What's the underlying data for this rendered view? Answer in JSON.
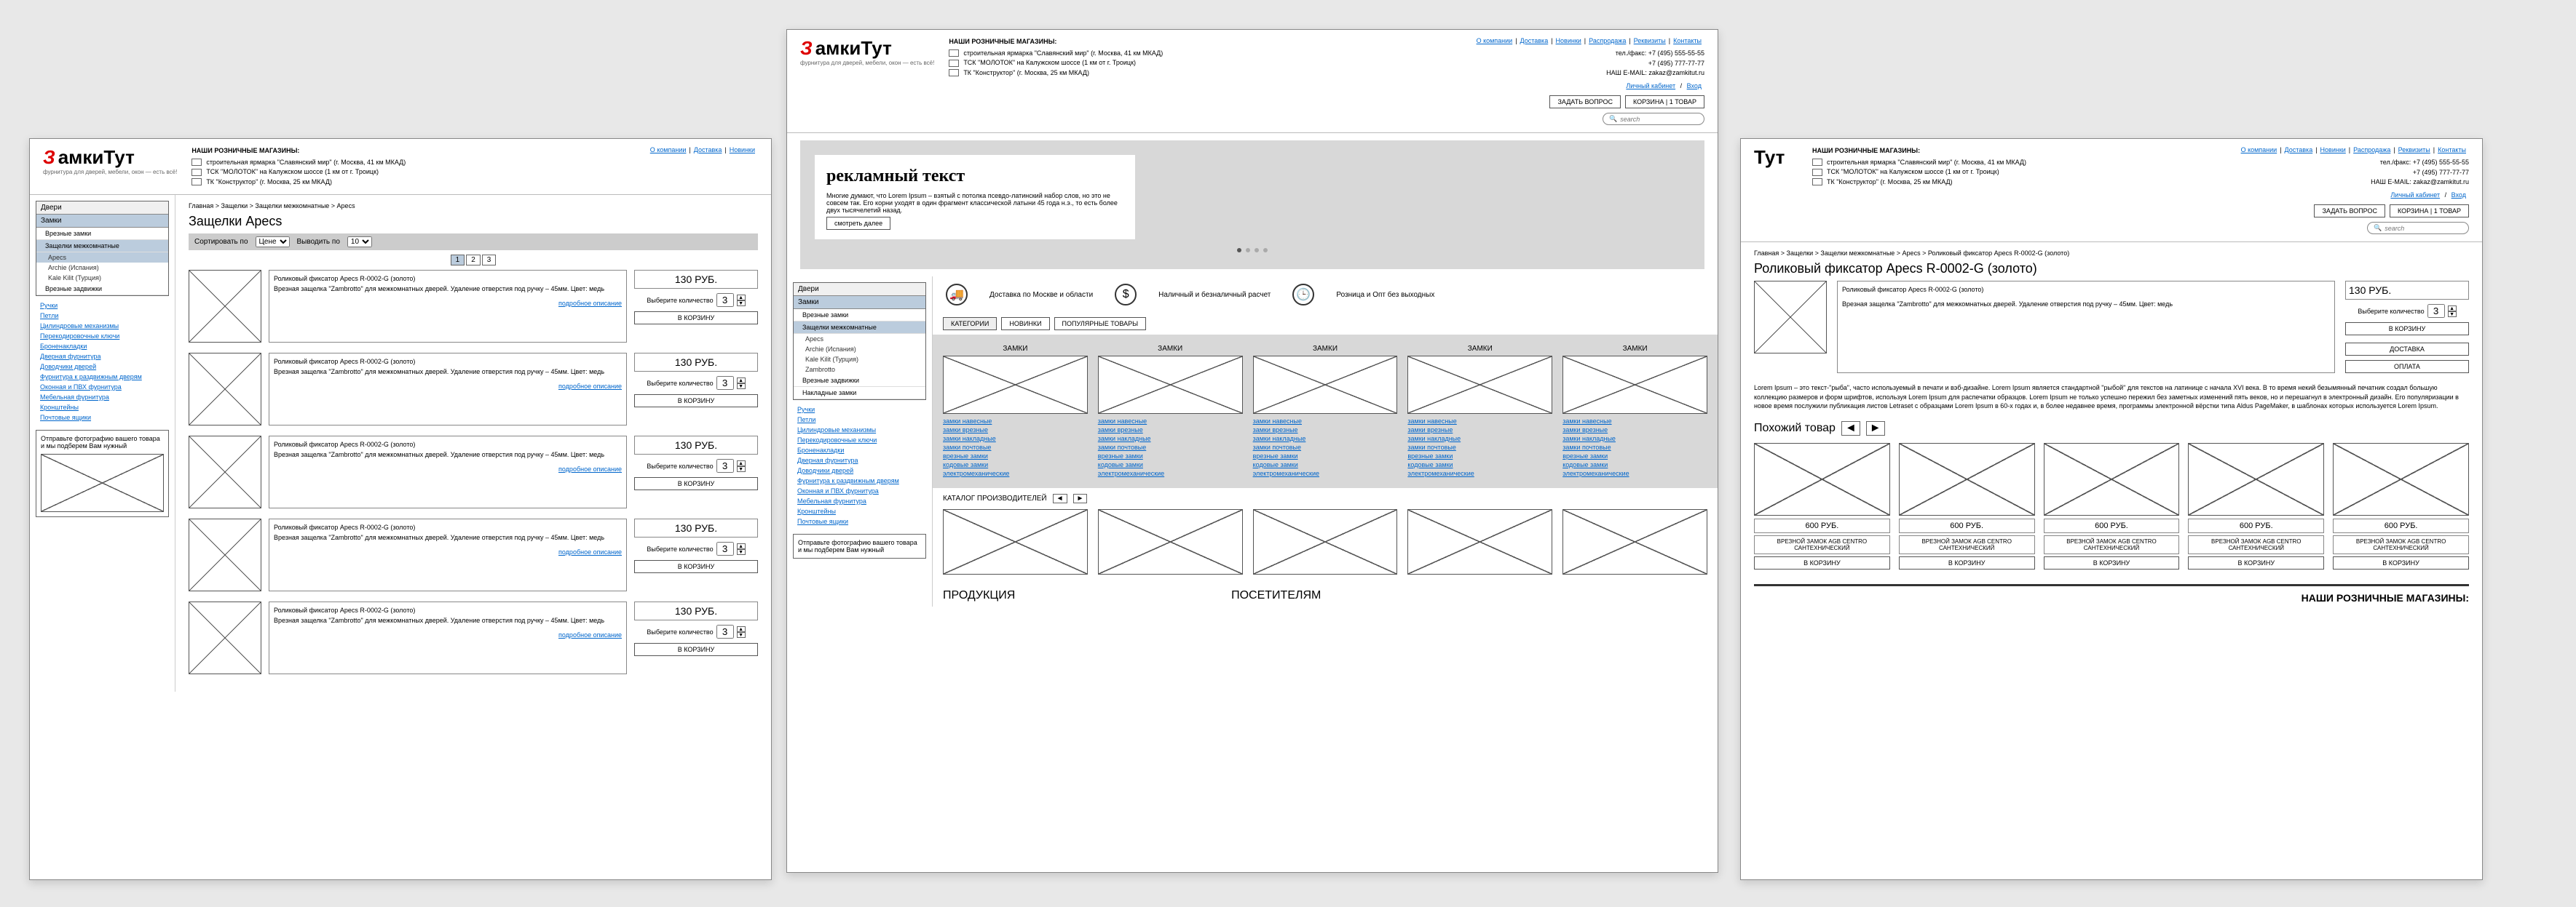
{
  "logo": {
    "part1": "З",
    "part2": "амкиТут",
    "sub": "фурнитура для дверей, мебели, окон — есть всё!"
  },
  "stores": {
    "title": "НАШИ РОЗНИЧНЫЕ МАГАЗИНЫ:",
    "list": [
      "строительная ярмарка \"Славянский мир\" (г. Москва, 41 км МКАД)",
      "ТСК \"МОЛОТОК\" на Калужском шоссе (1 км от г. Троицк)",
      "ТК \"Конструктор\" (г. Москва, 25 км МКАД)"
    ]
  },
  "topnav": [
    "О компании",
    "Доставка",
    "Новинки",
    "Распродажа",
    "Реквизиты",
    "Контакты"
  ],
  "contact": {
    "phone1": "тел./факс: +7 (495) 555-55-55",
    "phone2": "+7 (495) 777-77-77",
    "email": "НАШ E-MAIL: zakaz@zamkitut.ru",
    "cabinet": "Личный кабинет",
    "login": "Вход"
  },
  "buttons": {
    "ask": "ЗАДАТЬ ВОПРОС",
    "cart": "КОРЗИНА",
    "cart_qty": "1 ТОВАР"
  },
  "search_placeholder": "search",
  "sidebar": {
    "groups": [
      "Двери",
      "Замки"
    ],
    "sub": [
      "Врезные замки",
      "Защелки межкомнатные",
      "Накладные замки",
      "Врезные задвижки"
    ],
    "brands": [
      "Apecs",
      "Archie (Испания)",
      "Kale Kilit (Турция)",
      "Zambrotto"
    ],
    "links": [
      "Ручки",
      "Петли",
      "Цилиндровые механизмы",
      "Перекодировочные ключи",
      "Броненакладки",
      "Дверная фурнитура",
      "Доводчики дверей",
      "Фурнитура к раздвижным дверям",
      "Оконная и ПВХ фурнитура",
      "Мебельная фурнитура",
      "Кронштейны",
      "Почтовые ящики"
    ],
    "upload": "Отправьте фотографию вашего товара\nи мы подберем Вам нужный"
  },
  "crumbs": {
    "cat": "Главная > Защелки > Защелки межкомнатные > Apecs",
    "detail": "Главная > Защелки > Защелки межкомнатные > Apecs > Роликовый фиксатор Apecs R-0002-G (золото)"
  },
  "catalog": {
    "h1": "Защелки Apecs",
    "sort_label": "Сортировать по",
    "sort_val": "Цене",
    "perpage_label": "Выводить по",
    "perpage_val": "10",
    "pages": [
      "1",
      "2",
      "3"
    ],
    "product": {
      "title": "Роликовый фиксатор Apecs R-0002-G (золото)",
      "desc": "Врезная защелка \"Zambrotto\" для межкомнатных дверей. Удаление отверстия под ручку – 45мм. Цвет: медь",
      "more": "подробное описание",
      "price": "130 РУБ.",
      "qty_label": "Выберите количество",
      "qty": "3",
      "addcart": "В КОРЗИНУ"
    }
  },
  "home": {
    "banner": {
      "title": "рекламный текст",
      "text": "Многие думают, что Lorem Ipsum – взятый с потолка псевдо-латинский набор слов, но это не совсем так. Его корни уходят в один фрагмент классической латыни 45 года н.э., то есть более двух тысячелетий назад.",
      "btn": "смотреть далее"
    },
    "benefits": [
      "Доставка по Москве и области",
      "Наличный и безналичный расчет",
      "Розница и Опт без выходных"
    ],
    "tabs": [
      "КАТЕГОРИИ",
      "НОВИНКИ",
      "ПОПУЛЯРНЫЕ ТОВАРЫ"
    ],
    "cat_label": "ЗАМКИ",
    "cat_links": [
      "замки навесные",
      "замки врезные",
      "замки накладные",
      "замки почтовые",
      "врезные замки",
      "кодовые замки",
      "электромеханические"
    ],
    "mfr_label": "КАТАЛОГ ПРОИЗВОДИТЕЛЕЙ",
    "sections": [
      "ПРОДУКЦИЯ",
      "ПОСЕТИТЕЛЯМ",
      "НАШИ РОЗНИЧНЫЕ МАГАЗИНЫ:"
    ]
  },
  "detail": {
    "h1": "Роликовый фиксатор Apecs R-0002-G (золото)",
    "delivery": "ДОСТАВКА",
    "payment": "ОПЛАТА",
    "long": "Lorem Ipsum – это текст-\"рыба\", часто используемый в печати и вэб-дизайне. Lorem Ipsum является стандартной \"рыбой\" для текстов на латинице с начала XVI века. В то время некий безымянный печатник создал большую коллекцию размеров и форм шрифтов, используя Lorem Ipsum для распечатки образцов. Lorem Ipsum не только успешно пережил без заметных изменений пять веков, но и перешагнул в электронный дизайн. Его популяризации в новое время послужили публикация листов Letraset с образцами Lorem Ipsum в 60-х годах и, в более недавнее время, программы электронной вёрстки типа Aldus PageMaker, в шаблонах которых используется Lorem Ipsum.",
    "similar": "Похожий товар",
    "sim_price": "600 РУБ.",
    "sim_name": "ВРЕЗНОЙ ЗАМОК AGB CENTRO САНТЕХНИЧЕСКИЙ"
  }
}
